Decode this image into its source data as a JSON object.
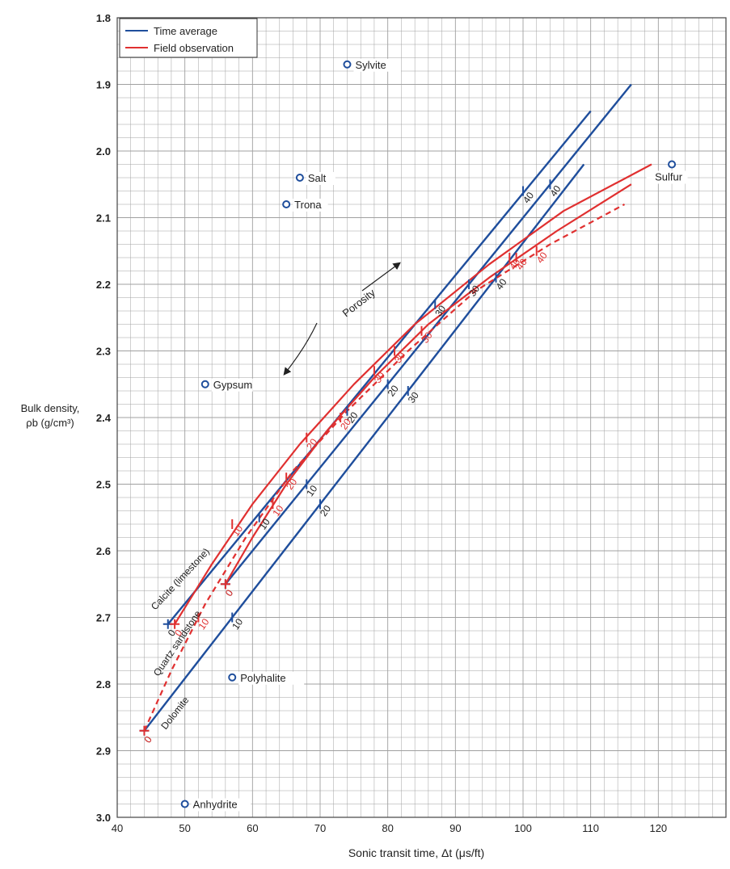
{
  "chart_data": {
    "type": "line",
    "xlabel": "Sonic transit time, Δt (μs/ft)",
    "ylabel_line1": "Bulk density,",
    "ylabel_line2": "ρb (g/cm³)",
    "xlim": [
      40,
      130
    ],
    "ylim": [
      1.8,
      3.0
    ],
    "y_inverted": true,
    "x_ticks": [
      "40",
      "50",
      "60",
      "70",
      "80",
      "90",
      "100",
      "110",
      "120"
    ],
    "y_ticks": [
      "1.8",
      "1.9",
      "2.0",
      "2.1",
      "2.2",
      "2.3",
      "2.4",
      "2.5",
      "2.6",
      "2.7",
      "2.8",
      "2.9",
      "3.0"
    ],
    "grid": true,
    "legend": {
      "position": "top-left",
      "items": [
        {
          "label": "Time average",
          "color": "#1f4e9c"
        },
        {
          "label": "Field observation",
          "color": "#e03030"
        }
      ]
    },
    "colors": {
      "time_average": "#1f4e9c",
      "field_observation": "#e03030",
      "grid": "#a0a0a0"
    },
    "minerals": [
      {
        "name": "Sylvite",
        "x": 74,
        "y": 1.87
      },
      {
        "name": "Salt",
        "x": 67,
        "y": 2.04
      },
      {
        "name": "Trona",
        "x": 65,
        "y": 2.08
      },
      {
        "name": "Gypsum",
        "x": 53,
        "y": 2.35
      },
      {
        "name": "Polyhalite",
        "x": 57,
        "y": 2.79
      },
      {
        "name": "Anhydrite",
        "x": 50,
        "y": 2.98
      },
      {
        "name": "Sulfur",
        "x": 122,
        "y": 2.02
      }
    ],
    "series": [
      {
        "name": "Calcite (limestone)",
        "kind": "time_average",
        "points": [
          [
            47.5,
            2.71
          ],
          [
            110,
            1.94
          ]
        ],
        "ticks": [
          {
            "label": "0",
            "x": 47.5,
            "y": 2.71
          },
          {
            "label": "10",
            "x": 61,
            "y": 2.55
          },
          {
            "label": "20",
            "x": 74,
            "y": 2.39
          },
          {
            "label": "30",
            "x": 87,
            "y": 2.23
          },
          {
            "label": "40",
            "x": 100,
            "y": 2.06
          }
        ]
      },
      {
        "name": "Quartz sandstone",
        "kind": "time_average",
        "points": [
          [
            56,
            2.65
          ],
          [
            116,
            1.9
          ]
        ],
        "ticks": [
          {
            "label": "0",
            "x": 56,
            "y": 2.65
          },
          {
            "label": "10",
            "x": 68,
            "y": 2.5
          },
          {
            "label": "20",
            "x": 80,
            "y": 2.35
          },
          {
            "label": "30",
            "x": 92,
            "y": 2.2
          },
          {
            "label": "40",
            "x": 104,
            "y": 2.05
          }
        ]
      },
      {
        "name": "Dolomite",
        "kind": "time_average",
        "points": [
          [
            44,
            2.87
          ],
          [
            109,
            2.02
          ]
        ],
        "ticks": [
          {
            "label": "0",
            "x": 44,
            "y": 2.87
          },
          {
            "label": "10",
            "x": 57,
            "y": 2.7
          },
          {
            "label": "20",
            "x": 70,
            "y": 2.53
          },
          {
            "label": "30",
            "x": 83,
            "y": 2.36
          },
          {
            "label": "40",
            "x": 96,
            "y": 2.19
          }
        ]
      },
      {
        "name": "Calcite (limestone)",
        "kind": "field_observation",
        "points": [
          [
            48.5,
            2.71
          ],
          [
            54,
            2.62
          ],
          [
            60,
            2.53
          ],
          [
            67,
            2.44
          ],
          [
            75,
            2.35
          ],
          [
            84,
            2.26
          ],
          [
            95,
            2.17
          ],
          [
            106,
            2.09
          ],
          [
            119,
            2.02
          ]
        ],
        "ticks": [
          {
            "label": "0",
            "x": 48.5,
            "y": 2.71
          },
          {
            "label": "10",
            "x": 57,
            "y": 2.56
          },
          {
            "label": "20",
            "x": 68,
            "y": 2.43
          },
          {
            "label": "30",
            "x": 81,
            "y": 2.3
          },
          {
            "label": "40",
            "x": 98,
            "y": 2.16
          }
        ]
      },
      {
        "name": "Quartz sandstone",
        "kind": "field_observation",
        "points": [
          [
            56,
            2.65
          ],
          [
            60,
            2.58
          ],
          [
            65,
            2.5
          ],
          [
            71,
            2.42
          ],
          [
            78,
            2.34
          ],
          [
            86,
            2.26
          ],
          [
            95,
            2.19
          ],
          [
            105,
            2.12
          ],
          [
            116,
            2.05
          ]
        ],
        "ticks": [
          {
            "label": "0",
            "x": 56,
            "y": 2.65
          },
          {
            "label": "10",
            "x": 63,
            "y": 2.53
          },
          {
            "label": "20",
            "x": 73,
            "y": 2.4
          },
          {
            "label": "30",
            "x": 85,
            "y": 2.27
          },
          {
            "label": "40",
            "x": 99,
            "y": 2.16
          }
        ]
      },
      {
        "name": "Dolomite",
        "kind": "field_observation",
        "dashed": true,
        "points": [
          [
            44,
            2.87
          ],
          [
            48,
            2.78
          ],
          [
            53,
            2.68
          ],
          [
            59,
            2.58
          ],
          [
            66,
            2.48
          ],
          [
            74,
            2.39
          ],
          [
            83,
            2.3
          ],
          [
            93,
            2.21
          ],
          [
            104,
            2.14
          ],
          [
            115,
            2.08
          ]
        ],
        "ticks": [
          {
            "label": "0",
            "x": 44,
            "y": 2.87
          },
          {
            "label": "10",
            "x": 52,
            "y": 2.7
          },
          {
            "label": "20",
            "x": 65,
            "y": 2.49
          },
          {
            "label": "30",
            "x": 78,
            "y": 2.33
          },
          {
            "label": "40",
            "x": 102,
            "y": 2.15
          }
        ]
      }
    ],
    "annotations": {
      "porosity": "Porosity",
      "curve_labels": [
        "Calcite (limestone)",
        "Quartz sandstone",
        "Dolomite"
      ]
    }
  }
}
